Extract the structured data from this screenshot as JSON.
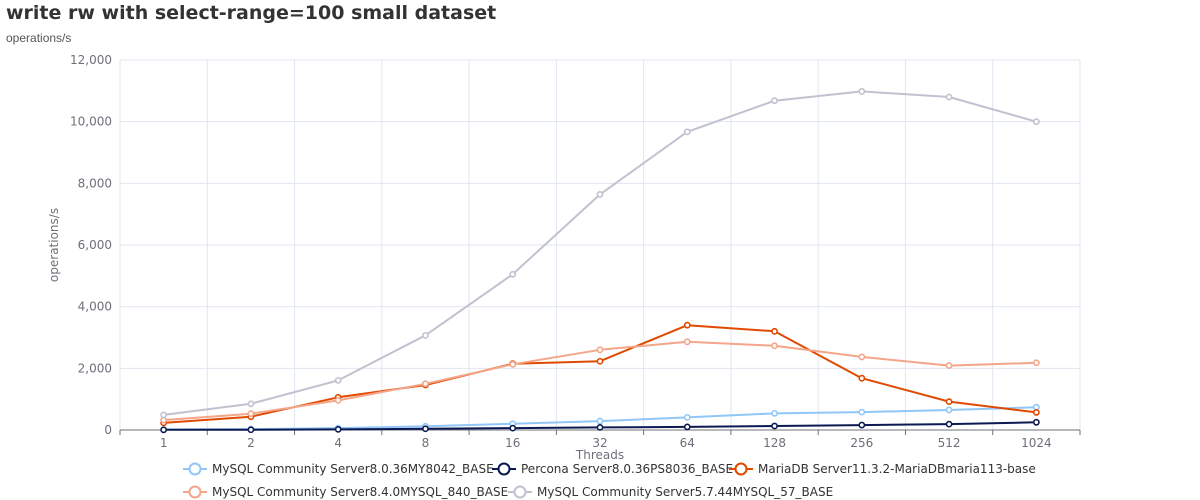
{
  "chart_data": {
    "type": "line",
    "title": "write rw with select-range=100 small dataset",
    "subtitle": "operations/s",
    "xlabel": "Threads",
    "ylabel": "operations/s",
    "categories": [
      "1",
      "2",
      "4",
      "8",
      "16",
      "32",
      "64",
      "128",
      "256",
      "512",
      "1024"
    ],
    "ylim": [
      0,
      12000
    ],
    "yticks": [
      "0",
      "2,000",
      "4,000",
      "6,000",
      "8,000",
      "10,000",
      "12,000"
    ],
    "ytick_values": [
      0,
      2000,
      4000,
      6000,
      8000,
      10000,
      12000
    ],
    "grid": true,
    "legend_position": "bottom",
    "series": [
      {
        "name": "MySQL Community Server8.0.36MY8042_BASE",
        "color": "#91c7f7",
        "values": [
          15,
          30,
          60,
          120,
          200,
          290,
          410,
          540,
          580,
          650,
          740
        ]
      },
      {
        "name": "Percona Server8.0.36PS8036_BASE",
        "color": "#0b1a52",
        "values": [
          5,
          8,
          20,
          40,
          60,
          85,
          100,
          130,
          160,
          190,
          250
        ]
      },
      {
        "name": "MariaDB Server11.3.2-MariaDBmaria113-base",
        "color": "#e04a00",
        "values": [
          230,
          430,
          1060,
          1460,
          2150,
          2230,
          3400,
          3200,
          1680,
          920,
          570
        ]
      },
      {
        "name": "MySQL Community Server8.4.0MYSQL_840_BASE",
        "color": "#f4a58a",
        "values": [
          320,
          530,
          960,
          1500,
          2130,
          2600,
          2860,
          2730,
          2370,
          2090,
          2180
        ]
      },
      {
        "name": "MySQL Community Server5.7.44MYSQL_57_BASE",
        "color": "#c0c2cf",
        "values": [
          490,
          850,
          1610,
          3070,
          5050,
          7640,
          9670,
          10680,
          10980,
          10800,
          10000
        ]
      }
    ]
  }
}
